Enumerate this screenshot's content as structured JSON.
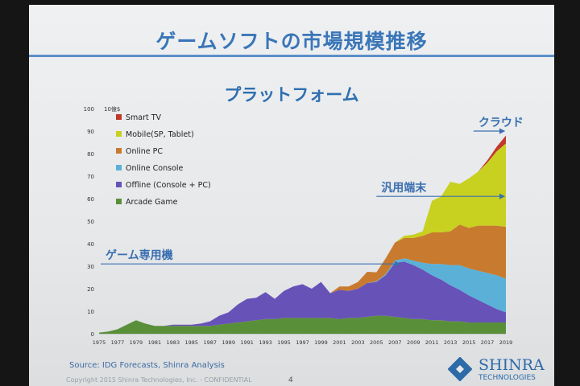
{
  "slide": {
    "title": "ゲームソフトの市場規模推移",
    "subtitle": "プラットフォーム",
    "source": "Source: IDG Forecasts, Shinra Analysis",
    "copyright": "Copyright 2015 Shinra Technologies, Inc. - CONFIDENTIAL",
    "page_number": "4",
    "logo_name": "SHINRA",
    "logo_sub": "TECHNOLOGIES"
  },
  "chart_data": {
    "type": "area",
    "unit_label": "10億$",
    "ylim": [
      0,
      100
    ],
    "yticks": [
      0,
      10,
      20,
      30,
      40,
      50,
      60,
      70,
      80,
      90,
      100
    ],
    "xticks": [
      "1975",
      "1977",
      "1979",
      "1981",
      "1983",
      "1985",
      "1987",
      "1989",
      "1991",
      "1993",
      "1995",
      "1997",
      "1999",
      "2001",
      "2003",
      "2005",
      "2007",
      "2009",
      "2011",
      "2013",
      "2015",
      "2017",
      "2019"
    ],
    "x": [
      1975,
      1976,
      1977,
      1978,
      1979,
      1980,
      1981,
      1982,
      1983,
      1984,
      1985,
      1986,
      1987,
      1988,
      1989,
      1990,
      1991,
      1992,
      1993,
      1994,
      1995,
      1996,
      1997,
      1998,
      1999,
      2000,
      2001,
      2002,
      2003,
      2004,
      2005,
      2006,
      2007,
      2008,
      2009,
      2010,
      2011,
      2012,
      2013,
      2014,
      2015,
      2016,
      2017,
      2018,
      2019
    ],
    "series": [
      {
        "name": "Arcade Game",
        "color": "#5a8f3a",
        "values": [
          0.5,
          1,
          2,
          4,
          6,
          4.5,
          3.5,
          3.5,
          3.5,
          3.5,
          3.5,
          3.5,
          3.5,
          4,
          4.5,
          5,
          5.5,
          6,
          6.5,
          6.5,
          7,
          7,
          7,
          7,
          7,
          7,
          6.5,
          7,
          7,
          7.5,
          8,
          8,
          7.5,
          7,
          6.5,
          6.5,
          6,
          6,
          5.5,
          5.5,
          5,
          5,
          5,
          5,
          5
        ]
      },
      {
        "name": "Offline (Console + PC)",
        "color": "#6752b8",
        "values": [
          0,
          0,
          0,
          0,
          0,
          0,
          0,
          0,
          0.5,
          0.5,
          0.5,
          1,
          2,
          4,
          5,
          8,
          10,
          10,
          12,
          9,
          12,
          14,
          15,
          13,
          16,
          11,
          13,
          12,
          13,
          15,
          15,
          18,
          24,
          25,
          24,
          22,
          20,
          18,
          16,
          14,
          12,
          10,
          8,
          6,
          4.5
        ]
      },
      {
        "name": "Online Console",
        "color": "#5bb0d8",
        "values": [
          0,
          0,
          0,
          0,
          0,
          0,
          0,
          0,
          0,
          0,
          0,
          0,
          0,
          0,
          0,
          0,
          0,
          0,
          0,
          0,
          0,
          0,
          0,
          0,
          0,
          0,
          0,
          0,
          0,
          0,
          0.3,
          0.5,
          1,
          1.5,
          2,
          3,
          5,
          7,
          9,
          11,
          12,
          13,
          14,
          15,
          15
        ]
      },
      {
        "name": "Online PC",
        "color": "#c87a2e",
        "values": [
          0,
          0,
          0,
          0,
          0,
          0,
          0,
          0,
          0,
          0,
          0,
          0,
          0,
          0,
          0,
          0,
          0,
          0,
          0,
          0,
          0,
          0,
          0,
          0,
          0,
          0,
          1.5,
          2,
          3,
          5,
          4,
          7,
          8,
          9,
          10,
          12,
          14,
          14,
          15,
          18,
          18,
          20,
          21,
          22,
          23
        ]
      },
      {
        "name": "Mobile(SP, Tablet)",
        "color": "#c8d020",
        "values": [
          0,
          0,
          0,
          0,
          0,
          0,
          0,
          0,
          0,
          0,
          0,
          0,
          0,
          0,
          0,
          0,
          0,
          0,
          0,
          0,
          0,
          0,
          0,
          0,
          0,
          0,
          0,
          0,
          0,
          0,
          0,
          0,
          0,
          1,
          1.5,
          2,
          14,
          16,
          22,
          18,
          22,
          24,
          28,
          33,
          37
        ]
      },
      {
        "name": "Smart TV",
        "color": "#c0392b",
        "values": [
          0,
          0,
          0,
          0,
          0,
          0,
          0,
          0,
          0,
          0,
          0,
          0,
          0,
          0,
          0,
          0,
          0,
          0,
          0,
          0,
          0,
          0,
          0,
          0,
          0,
          0,
          0,
          0,
          0,
          0,
          0,
          0,
          0,
          0,
          0,
          0,
          0,
          0,
          0,
          0,
          0,
          0,
          1,
          2,
          3.5
        ]
      }
    ],
    "legend": [
      "Smart TV",
      "Mobile(SP, Tablet)",
      "Online PC",
      "Online Console",
      "Offline (Console + PC)",
      "Arcade Game"
    ],
    "legend_position": "top-left",
    "annotations": [
      {
        "text": "ゲーム専用機",
        "arrow_year_end": 2007.5,
        "level": 31
      },
      {
        "text": "汎用端末",
        "arrow_year_start": 2005,
        "level": 61
      },
      {
        "text": "クラウド",
        "arrow_year_start": 2015.5,
        "level": 90
      }
    ],
    "annotation_color": "#3a6fb0"
  }
}
